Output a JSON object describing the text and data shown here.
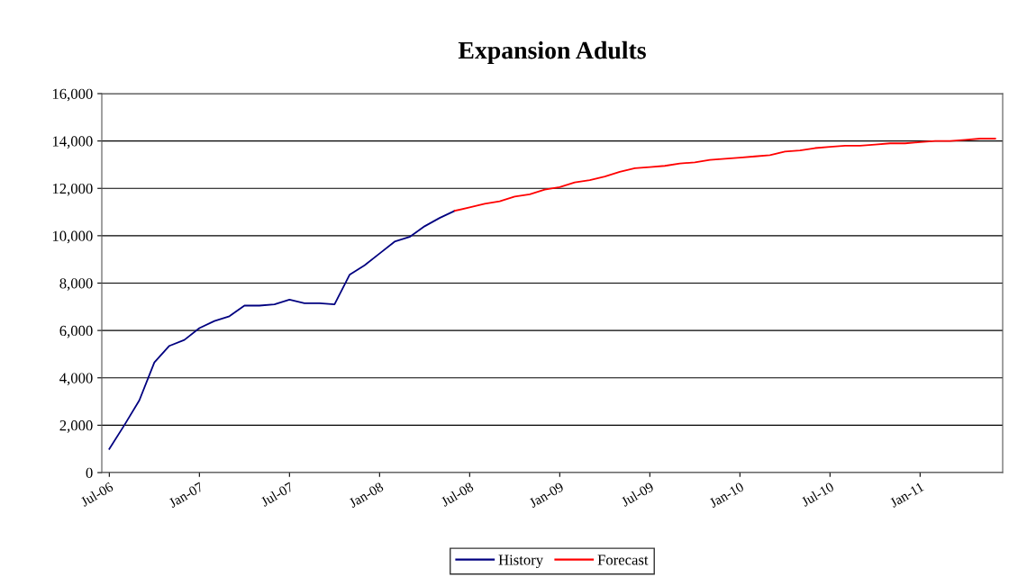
{
  "chart_data": {
    "type": "line",
    "title": "Expansion Adults",
    "categories": [
      "Jul-06",
      null,
      null,
      null,
      null,
      null,
      "Jan-07",
      null,
      null,
      null,
      null,
      null,
      "Jul-07",
      null,
      null,
      null,
      null,
      null,
      "Jan-08",
      null,
      null,
      null,
      null,
      null,
      "Jul-08",
      null,
      null,
      null,
      null,
      null,
      "Jan-09",
      null,
      null,
      null,
      null,
      null,
      "Jul-09",
      null,
      null,
      null,
      null,
      null,
      "Jan-10",
      null,
      null,
      null,
      null,
      null,
      "Jul-10",
      null,
      null,
      null,
      null,
      null,
      "Jan-11",
      null,
      null,
      null,
      null,
      null
    ],
    "series": [
      {
        "name": "History",
        "color": "#000080",
        "values": [
          1000,
          2000,
          3050,
          4650,
          5350,
          5600,
          6100,
          6400,
          6600,
          7050,
          7050,
          7100,
          7300,
          7150,
          7150,
          7100,
          8350,
          8750,
          9250,
          9750,
          9950,
          10400,
          10750,
          11050,
          null,
          null,
          null,
          null,
          null,
          null,
          null,
          null,
          null,
          null,
          null,
          null,
          null,
          null,
          null,
          null,
          null,
          null,
          null,
          null,
          null,
          null,
          null,
          null,
          null,
          null,
          null,
          null,
          null,
          null,
          null,
          null,
          null,
          null,
          null,
          null
        ]
      },
      {
        "name": "Forecast",
        "color": "#ff0000",
        "values": [
          null,
          null,
          null,
          null,
          null,
          null,
          null,
          null,
          null,
          null,
          null,
          null,
          null,
          null,
          null,
          null,
          null,
          null,
          null,
          null,
          null,
          null,
          null,
          11050,
          11200,
          11350,
          11450,
          11650,
          11750,
          11950,
          12050,
          12250,
          12350,
          12500,
          12700,
          12850,
          12900,
          12950,
          13050,
          13100,
          13200,
          13250,
          13300,
          13350,
          13400,
          13550,
          13600,
          13700,
          13750,
          13800,
          13800,
          13850,
          13900,
          13900,
          13950,
          14000,
          14000,
          14050,
          14100,
          14100
        ]
      }
    ],
    "ylim": [
      0,
      16000
    ],
    "yticks": [
      {
        "value": 0,
        "label": "0"
      },
      {
        "value": 2000,
        "label": "2,000"
      },
      {
        "value": 4000,
        "label": "4,000"
      },
      {
        "value": 6000,
        "label": "6,000"
      },
      {
        "value": 8000,
        "label": "8,000"
      },
      {
        "value": 10000,
        "label": "10,000"
      },
      {
        "value": 12000,
        "label": "12,000"
      },
      {
        "value": 14000,
        "label": "14,000"
      },
      {
        "value": 16000,
        "label": "16,000"
      }
    ],
    "grid": "y",
    "legend": "bottom",
    "marker": "none",
    "line_style": "solid"
  }
}
